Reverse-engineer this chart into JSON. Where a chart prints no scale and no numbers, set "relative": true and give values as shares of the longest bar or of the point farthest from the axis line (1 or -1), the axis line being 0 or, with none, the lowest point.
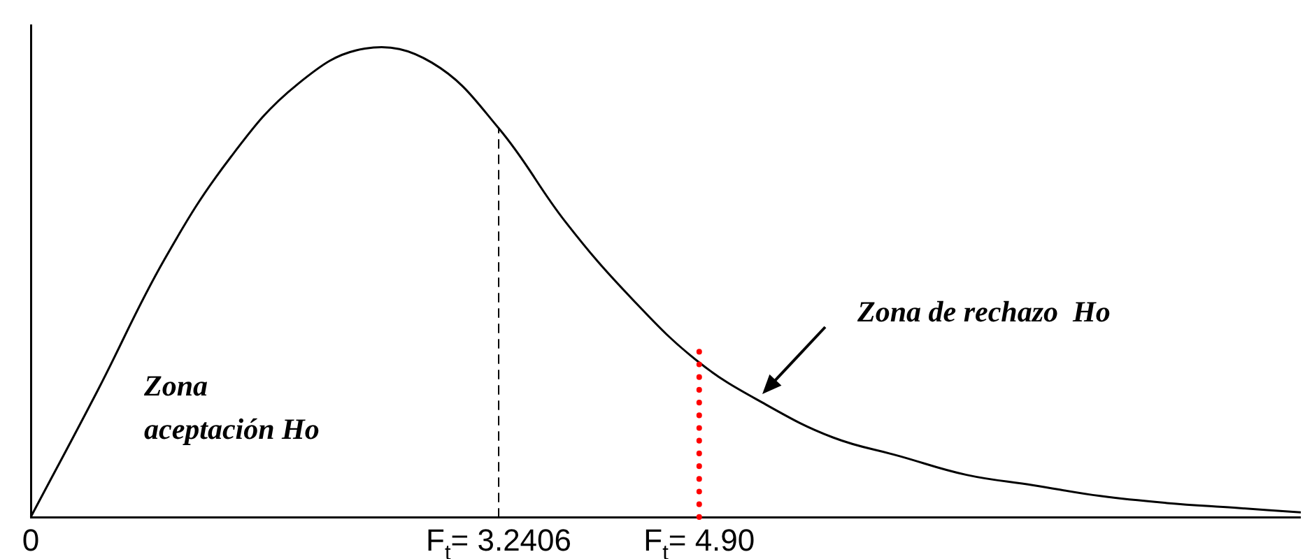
{
  "chart_data": {
    "type": "line",
    "relative": true,
    "color": "#000000",
    "categories": [
      "0",
      null,
      null,
      null,
      null,
      null,
      null,
      "F$_{t}$= 3.2406",
      null,
      null,
      "F$_{t}$= 4.90",
      null,
      null,
      null,
      null,
      null,
      null,
      null,
      null,
      null
    ],
    "values": [
      0,
      0.27,
      0.55,
      0.77,
      0.925,
      1,
      0.97,
      0.83,
      0.63,
      0.465,
      0.33,
      0.24,
      0.17,
      0.13,
      0.09,
      0.068,
      0.045,
      0.03,
      0.02,
      0.01
    ],
    "grid": false,
    "legend": false,
    "marker": "none",
    "line_style": "solid",
    "ref_lines": [
      {
        "axis": "x",
        "value": "F$_{t}$= 3.2406",
        "color": "#000000",
        "line_style": "dashed"
      },
      {
        "axis": "x",
        "value": "F$_{t}$= 4.90",
        "color": "#ff0000",
        "line_style": "dotted"
      }
    ],
    "annotations": [
      "Zona aceptación Ho",
      "Zona de rechazo  Ho"
    ]
  }
}
